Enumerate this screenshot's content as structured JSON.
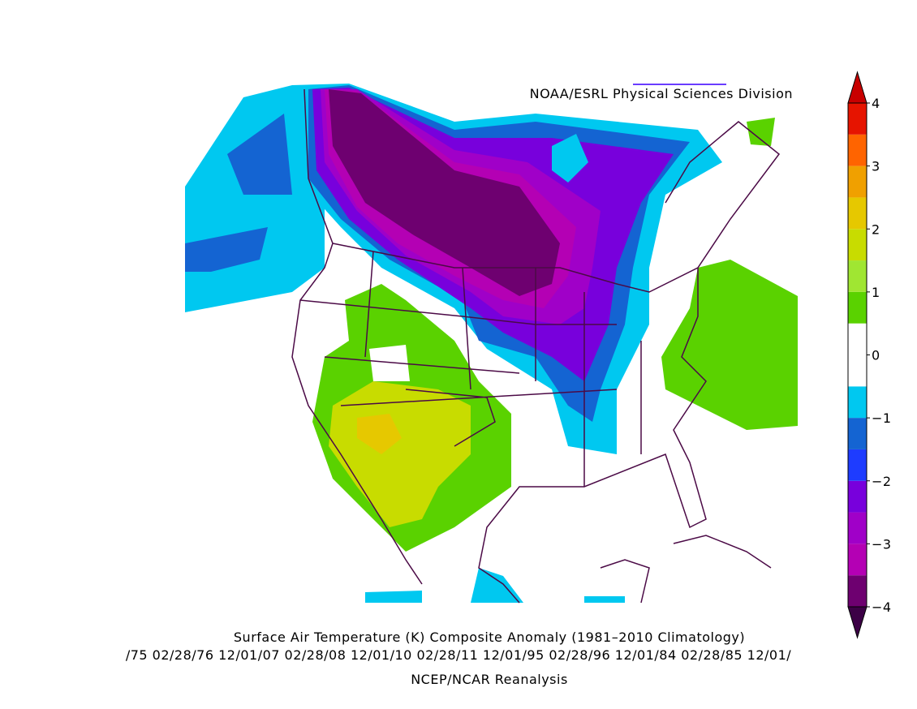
{
  "chart_data": {
    "type": "map",
    "source": "NOAA/ESRL Physical Sciences Division",
    "title": "Surface Air Temperature (K) Composite Anomaly (1981–2010 Climatology)",
    "subtitle": "/75 02/28/76 12/01/07 02/28/08 12/01/10 02/28/11 12/01/95 02/28/96 12/01/84 02/28/85 12/01/",
    "footer": "NCEP/NCAR Reanalysis",
    "colorbar": {
      "levels": [
        -4,
        -3.5,
        -3,
        -2.5,
        -2,
        -1.5,
        -1,
        -0.5,
        0,
        0.5,
        1,
        1.5,
        2,
        2.5,
        3,
        3.5,
        4
      ],
      "colors": [
        "#6e0070",
        "#b400b4",
        "#a000c8",
        "#7800dc",
        "#1e3cff",
        "#1464d2",
        "#00c8f0",
        "#ffffff",
        "#ffffff",
        "#5ad200",
        "#a0e632",
        "#c8dc00",
        "#e6c800",
        "#f0a000",
        "#ff6400",
        "#e61400"
      ],
      "under_color": "#3c0046",
      "over_color": "#c80000",
      "ticks": [
        {
          "value": -4,
          "label": "−4"
        },
        {
          "value": -3,
          "label": "−3"
        },
        {
          "value": -2,
          "label": "−2"
        },
        {
          "value": -1,
          "label": "−1"
        },
        0,
        1,
        2,
        3,
        4
      ]
    }
  }
}
